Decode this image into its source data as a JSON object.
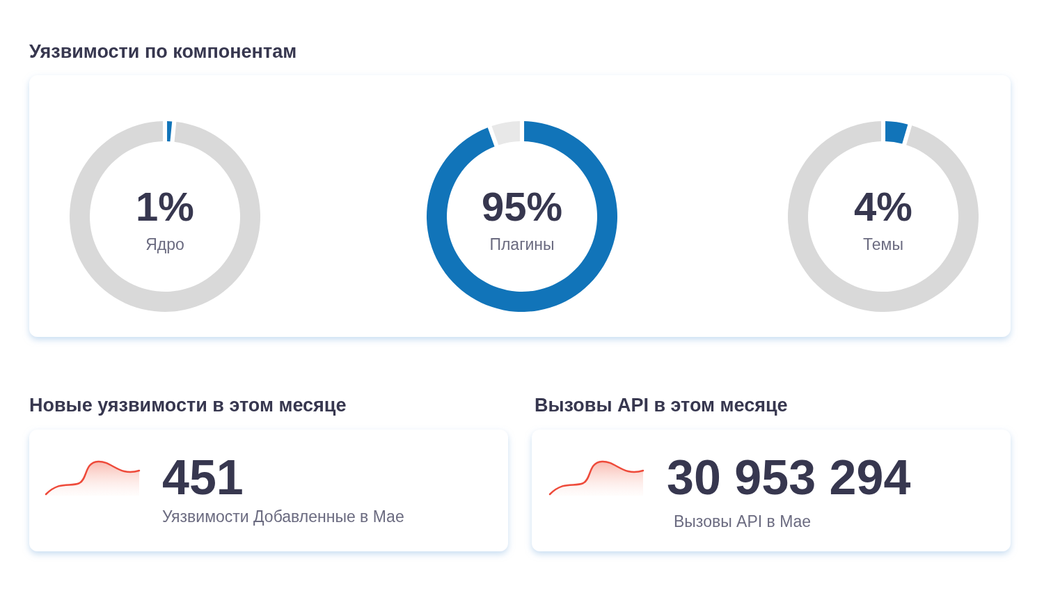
{
  "chart_data": [
    {
      "type": "donut",
      "title": "Уязвимости по компонентам",
      "categories": [
        "Ядро",
        null
      ],
      "values": [
        1,
        99
      ],
      "colors": [
        "#1174b9",
        "#d9d9d9"
      ],
      "value_labels": [
        "1%",
        null
      ]
    },
    {
      "type": "donut",
      "categories": [
        "Плагины",
        null
      ],
      "values": [
        95,
        5
      ],
      "colors": [
        "#1174b9",
        "#e8e8e8"
      ],
      "value_labels": [
        "95%",
        null
      ]
    },
    {
      "type": "donut",
      "categories": [
        "Темы",
        null
      ],
      "values": [
        4,
        96
      ],
      "colors": [
        "#1174b9",
        "#d9d9d9"
      ],
      "value_labels": [
        "4%",
        null
      ]
    },
    {
      "type": "other",
      "title": "Новые уязвимости в этом месяце",
      "annotations": [
        "451",
        "Уязвимости Добавленные в Мае"
      ]
    },
    {
      "type": "other",
      "title": "Вызовы API в этом месяце",
      "annotations": [
        "30 953 294",
        "Вызовы API в Мае"
      ]
    }
  ]
}
